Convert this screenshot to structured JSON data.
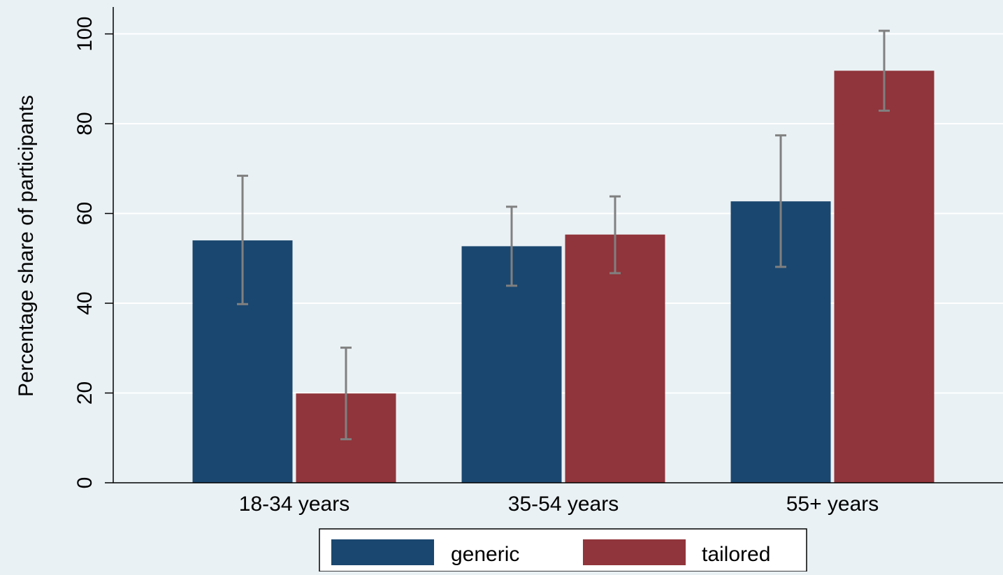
{
  "chart_data": {
    "type": "bar",
    "title": "",
    "xlabel": "",
    "ylabel": "Percentage share of participants",
    "ylim": [
      0,
      106
    ],
    "yticks": [
      0,
      20,
      40,
      60,
      80,
      100
    ],
    "categories": [
      "18-34 years",
      "35-54 years",
      "55+ years"
    ],
    "series": [
      {
        "name": "generic",
        "color": "#1a476f",
        "values": [
          54,
          52.7,
          62.7
        ],
        "ci_low": [
          39.8,
          43.9,
          48.1
        ],
        "ci_high": [
          68.4,
          61.5,
          77.4
        ]
      },
      {
        "name": "tailored",
        "color": "#90353b",
        "values": [
          19.9,
          55.3,
          91.8
        ],
        "ci_low": [
          9.7,
          46.7,
          82.9
        ],
        "ci_high": [
          30.1,
          63.8,
          100.7
        ]
      }
    ],
    "error_bar_color": "#808080",
    "gridlines": true,
    "gridline_color": "#ffffff",
    "legend_position": "bottom"
  }
}
